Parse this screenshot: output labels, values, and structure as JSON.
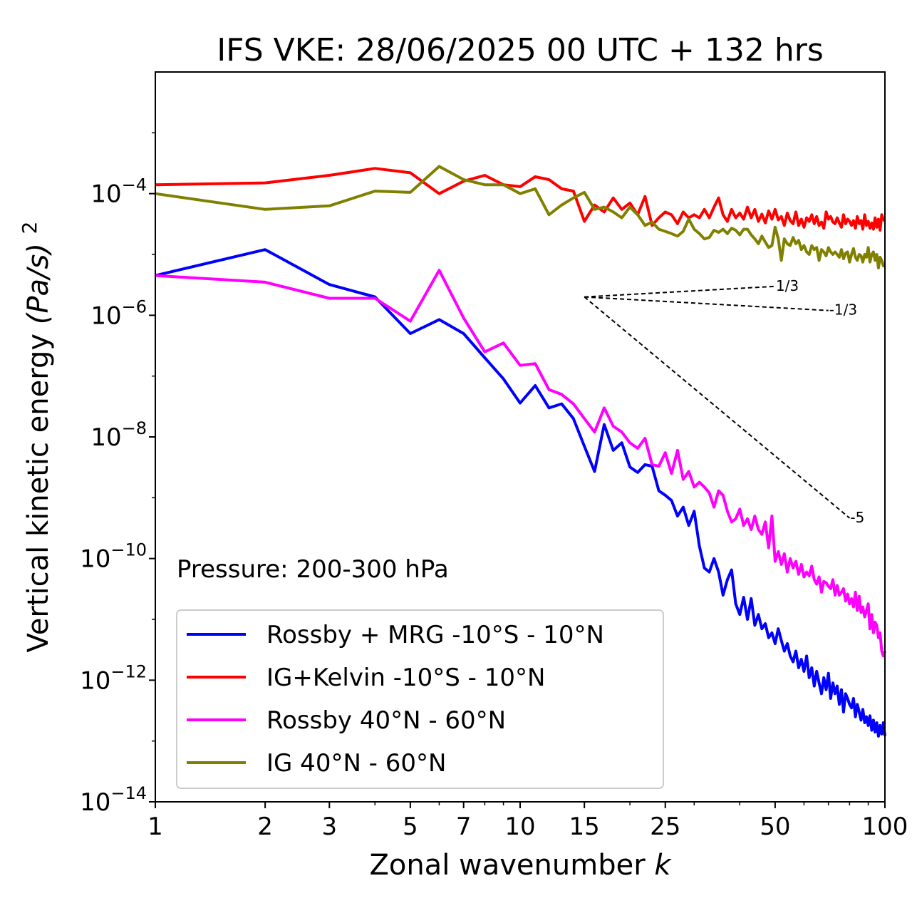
{
  "chart_data": {
    "type": "line",
    "title": "IFS VKE: 28/06/2025 00 UTC + 132 hrs",
    "xlabel": "Zonal wavenumber",
    "xlabel_italic": "k",
    "ylabel": "Vertical kinetic energy",
    "ylabel_unit": "(Pa/s)",
    "ylabel_unit_exp": "2",
    "x_scale": "log",
    "y_scale": "log",
    "xlim": [
      1,
      100
    ],
    "ylim": [
      1e-14,
      0.01
    ],
    "xticks": [
      1,
      2,
      3,
      5,
      7,
      10,
      15,
      25,
      50,
      100
    ],
    "xtick_labels": [
      "1",
      "2",
      "3",
      "5",
      "7",
      "10",
      "15",
      "25",
      "50",
      "100"
    ],
    "yticks": [
      {
        "base": "10",
        "exp": "−4",
        "value": 0.0001
      },
      {
        "base": "10",
        "exp": "−6",
        "value": 1e-06
      },
      {
        "base": "10",
        "exp": "−8",
        "value": 1e-08
      },
      {
        "base": "10",
        "exp": "−10",
        "value": 1e-10
      },
      {
        "base": "10",
        "exp": "−12",
        "value": 1e-12
      },
      {
        "base": "10",
        "exp": "−14",
        "value": 1e-14
      }
    ],
    "grid": false,
    "legend_position": "lower-left",
    "text_annotation": "Pressure: 200-300 hPa",
    "reference_slopes": [
      {
        "label": "1/3",
        "slope": 0.3333,
        "x_start": 15,
        "x_end": 50,
        "y_start": 2e-06
      },
      {
        "label": "-1/3",
        "slope": -0.3333,
        "x_start": 15,
        "x_end": 70,
        "y_start": 2e-06
      },
      {
        "label": "-5",
        "slope": -5,
        "x_start": 15,
        "x_end": 80,
        "y_start": 2e-06
      }
    ],
    "series": [
      {
        "name": "Rossby + MRG -10°S - 10°N",
        "color": "#0000ff",
        "x": [
          1,
          2,
          3,
          4,
          5,
          6,
          7,
          8,
          9,
          10,
          11,
          12,
          13,
          14,
          15,
          16,
          17,
          18,
          19,
          20,
          21,
          22,
          23,
          24,
          25,
          26,
          27,
          28,
          29,
          30,
          31,
          32,
          33,
          34,
          35,
          36,
          37,
          38,
          39,
          40,
          41,
          42,
          43,
          44,
          45,
          46,
          47,
          48,
          49,
          50,
          51,
          52,
          53,
          54,
          55,
          56,
          57,
          58,
          59,
          60,
          61,
          62,
          63,
          64,
          65,
          66,
          67,
          68,
          69,
          70,
          71,
          72,
          73,
          74,
          75,
          76,
          77,
          78,
          79,
          80,
          81,
          82,
          83,
          84,
          85,
          86,
          87,
          88,
          89,
          90,
          91,
          92,
          93,
          94,
          95,
          96,
          97,
          98,
          99,
          100
        ],
        "y": [
          4.5e-06,
          1.2e-05,
          3.2e-06,
          2e-06,
          5e-07,
          8.5e-07,
          5e-07,
          2e-07,
          9e-08,
          3.6e-08,
          7e-08,
          3e-08,
          3.5e-08,
          2e-08,
          7e-09,
          2.7e-09,
          1.6e-08,
          6e-09,
          8e-09,
          3.2e-09,
          2.6e-09,
          3.5e-09,
          3.3e-09,
          1.3e-09,
          1.1e-09,
          9e-10,
          5e-10,
          7e-10,
          3.5e-10,
          6e-10,
          1.6e-10,
          7e-11,
          6e-11,
          1e-10,
          6e-11,
          2.5e-11,
          4.5e-11,
          6.5e-11,
          1.8e-11,
          1.2e-11,
          2.3e-11,
          1e-11,
          2.2e-11,
          8e-12,
          1.2e-11,
          7e-12,
          8.5e-12,
          5e-12,
          6e-12,
          4e-12,
          7e-12,
          4.5e-12,
          3e-12,
          4e-12,
          2.5e-12,
          2e-12,
          3e-12,
          1.6e-12,
          2.2e-12,
          1.4e-12,
          2.5e-12,
          1.1e-12,
          1.6e-12,
          8e-13,
          1.4e-12,
          9e-13,
          6e-13,
          1.1e-12,
          7e-13,
          1.3e-12,
          5e-13,
          9e-13,
          6e-13,
          8e-13,
          4e-13,
          7e-13,
          3e-13,
          6e-13,
          5e-13,
          4e-13,
          3.5e-13,
          5e-13,
          2.5e-13,
          4e-13,
          3e-13,
          2.2e-13,
          3.3e-13,
          2e-13,
          2.5e-13,
          1.8e-13,
          2.6e-13,
          1.5e-13,
          2.2e-13,
          1.4e-13,
          2e-13,
          1.2e-13,
          1.8e-13,
          1.3e-13,
          2e-13,
          1.2e-13
        ]
      },
      {
        "name": "IG+Kelvin -10°S - 10°N",
        "color": "#ff0000",
        "x": [
          1,
          2,
          3,
          4,
          5,
          6,
          7,
          8,
          9,
          10,
          11,
          12,
          13,
          14,
          15,
          16,
          17,
          18,
          19,
          20,
          21,
          22,
          23,
          24,
          25,
          26,
          27,
          28,
          29,
          30,
          31,
          32,
          33,
          34,
          35,
          36,
          37,
          38,
          39,
          40,
          41,
          42,
          43,
          44,
          45,
          46,
          47,
          48,
          49,
          50,
          51,
          52,
          53,
          54,
          55,
          56,
          57,
          58,
          59,
          60,
          61,
          62,
          63,
          64,
          65,
          66,
          67,
          68,
          69,
          70,
          71,
          72,
          73,
          74,
          75,
          76,
          77,
          78,
          79,
          80,
          81,
          82,
          83,
          84,
          85,
          86,
          87,
          88,
          89,
          90,
          91,
          92,
          93,
          94,
          95,
          96,
          97,
          98,
          99,
          100
        ],
        "y": [
          0.00014,
          0.00015,
          0.0002,
          0.00026,
          0.00022,
          0.0001,
          0.00016,
          0.0002,
          0.00014,
          0.00013,
          0.00019,
          0.00017,
          0.00012,
          0.00011,
          3.5e-05,
          6.5e-05,
          5e-05,
          8.5e-05,
          5.5e-05,
          7e-05,
          4.5e-05,
          9e-05,
          3e-05,
          4e-05,
          5e-05,
          4.5e-05,
          3.2e-05,
          5e-05,
          4e-05,
          4.5e-05,
          4e-05,
          5.5e-05,
          4e-05,
          6e-05,
          8.5e-05,
          4.5e-05,
          3.5e-05,
          5.5e-05,
          4e-05,
          4.8e-05,
          3.8e-05,
          6e-05,
          4e-05,
          5.5e-05,
          3.5e-05,
          4.6e-05,
          3.3e-05,
          5.2e-05,
          3.8e-05,
          5.5e-05,
          3.7e-05,
          4.2e-05,
          3e-05,
          4.8e-05,
          3.6e-05,
          3.2e-05,
          5e-05,
          3e-05,
          3.8e-05,
          2.8e-05,
          4e-05,
          3.5e-05,
          4.5e-05,
          3.2e-05,
          4.2e-05,
          3e-05,
          3.4e-05,
          2.7e-05,
          5e-05,
          3.8e-05,
          4.2e-05,
          3.4e-05,
          3.2e-05,
          4e-05,
          3.3e-05,
          2.8e-05,
          4.5e-05,
          3.2e-05,
          3.8e-05,
          3.5e-05,
          3e-05,
          3.6e-05,
          2.7e-05,
          4.2e-05,
          3.2e-05,
          3.6e-05,
          2.6e-05,
          4.5e-05,
          3e-05,
          3.5e-05,
          2.7e-05,
          3.3e-05,
          2.6e-05,
          4e-05,
          2.8e-05,
          3.8e-05,
          2.5e-05,
          4.5e-05,
          3.8e-05,
          3.5e-05
        ]
      },
      {
        "name": "Rossby 40°N - 60°N",
        "color": "#ff00ff",
        "x": [
          1,
          2,
          3,
          4,
          5,
          6,
          7,
          8,
          9,
          10,
          11,
          12,
          13,
          14,
          15,
          16,
          17,
          18,
          19,
          20,
          21,
          22,
          23,
          24,
          25,
          26,
          27,
          28,
          29,
          30,
          31,
          32,
          33,
          34,
          35,
          36,
          37,
          38,
          39,
          40,
          41,
          42,
          43,
          44,
          45,
          46,
          47,
          48,
          49,
          50,
          51,
          52,
          53,
          54,
          55,
          56,
          57,
          58,
          59,
          60,
          61,
          62,
          63,
          64,
          65,
          66,
          67,
          68,
          69,
          70,
          71,
          72,
          73,
          74,
          75,
          76,
          77,
          78,
          79,
          80,
          81,
          82,
          83,
          84,
          85,
          86,
          87,
          88,
          89,
          90,
          91,
          92,
          93,
          94,
          95,
          96,
          97,
          98,
          99,
          100
        ],
        "y": [
          4.5e-06,
          3.5e-06,
          1.9e-06,
          1.9e-06,
          8e-07,
          5.5e-06,
          9e-07,
          2.5e-07,
          3.5e-07,
          1.5e-07,
          1.6e-07,
          6e-08,
          5e-08,
          3.5e-08,
          2e-08,
          1.2e-08,
          3e-08,
          1.5e-08,
          1.2e-08,
          8e-09,
          6.5e-09,
          9.5e-09,
          3.5e-09,
          3.3e-09,
          5.5e-09,
          2.5e-09,
          6e-09,
          2e-09,
          2.7e-09,
          1.5e-09,
          1.8e-09,
          1.5e-09,
          1.2e-09,
          7e-10,
          1.3e-09,
          1.1e-09,
          6e-10,
          4e-10,
          4.5e-10,
          6.5e-10,
          3.5e-10,
          4.5e-10,
          3e-10,
          5e-10,
          3e-10,
          2.5e-10,
          4e-10,
          1.5e-10,
          5e-10,
          9e-11,
          1.3e-10,
          8e-11,
          1.2e-10,
          6e-11,
          1e-10,
          7e-11,
          9e-11,
          5.5e-11,
          8e-11,
          5e-11,
          6e-11,
          5.2e-11,
          7.5e-11,
          4.5e-11,
          3.8e-11,
          5e-11,
          2.8e-11,
          4.2e-11,
          4e-11,
          3.5e-11,
          3.2e-11,
          4.5e-11,
          2.5e-11,
          3.6e-11,
          2.5e-11,
          2.8e-11,
          3.2e-11,
          2e-11,
          2.6e-11,
          1.8e-11,
          2.2e-11,
          1.6e-11,
          2.8e-11,
          1.4e-11,
          2.4e-11,
          1.3e-11,
          1.6e-11,
          1.1e-11,
          1.4e-11,
          1.8e-11,
          7e-12,
          1.2e-11,
          6e-12,
          9e-12,
          8e-12,
          5e-12,
          6e-12,
          3e-12,
          2.5e-12,
          3e-12
        ]
      },
      {
        "name": "IG 40°N - 60°N",
        "color": "#808000",
        "x": [
          1,
          2,
          3,
          4,
          5,
          6,
          7,
          8,
          9,
          10,
          11,
          12,
          13,
          14,
          15,
          16,
          17,
          18,
          19,
          20,
          21,
          22,
          23,
          24,
          25,
          26,
          27,
          28,
          29,
          30,
          31,
          32,
          33,
          34,
          35,
          36,
          37,
          38,
          39,
          40,
          41,
          42,
          43,
          44,
          45,
          46,
          47,
          48,
          49,
          50,
          51,
          52,
          53,
          54,
          55,
          56,
          57,
          58,
          59,
          60,
          61,
          62,
          63,
          64,
          65,
          66,
          67,
          68,
          69,
          70,
          71,
          72,
          73,
          74,
          75,
          76,
          77,
          78,
          79,
          80,
          81,
          82,
          83,
          84,
          85,
          86,
          87,
          88,
          89,
          90,
          91,
          92,
          93,
          94,
          95,
          96,
          97,
          98,
          99,
          100
        ],
        "y": [
          0.0001,
          5.5e-05,
          6.3e-05,
          0.00011,
          0.000105,
          0.00028,
          0.00017,
          0.00014,
          0.00014,
          0.0001,
          0.00012,
          4.5e-05,
          6.5e-05,
          8.5e-05,
          0.000105,
          5.5e-05,
          6e-05,
          5e-05,
          4e-05,
          6e-05,
          4.5e-05,
          3e-05,
          3.4e-05,
          2.6e-05,
          2.4e-05,
          2.2e-05,
          2e-05,
          2.4e-05,
          3.8e-05,
          2.6e-05,
          2.2e-05,
          1.8e-05,
          1.9e-05,
          2.5e-05,
          2.3e-05,
          2.6e-05,
          2.2e-05,
          2.7e-05,
          2.5e-05,
          2.1e-05,
          2.6e-05,
          2.6e-05,
          2.1e-05,
          1.8e-05,
          1.5e-05,
          2e-05,
          1.6e-05,
          1.3e-05,
          1.4e-05,
          2.8e-05,
          1.8e-05,
          8e-06,
          1.8e-05,
          1.5e-05,
          1.4e-05,
          1.9e-05,
          1.5e-05,
          1.7e-05,
          1.2e-05,
          1.4e-05,
          1.1e-05,
          1e-05,
          1.4e-05,
          1.2e-05,
          1.3e-05,
          8e-06,
          1.2e-05,
          1.1e-05,
          9.5e-06,
          1.3e-05,
          1.1e-05,
          1e-05,
          1.1e-05,
          1e-05,
          9e-06,
          1.2e-05,
          8.5e-06,
          1.05e-05,
          1.1e-05,
          7.5e-06,
          1e-05,
          1.25e-05,
          9e-06,
          8e-06,
          1e-05,
          9.5e-06,
          7.5e-06,
          1e-05,
          9e-06,
          1.3e-05,
          7.5e-06,
          1e-05,
          1.1e-05,
          8e-06,
          1e-05,
          6e-06,
          9e-06,
          8e-06,
          6.5e-06,
          6.5e-06
        ]
      }
    ]
  }
}
